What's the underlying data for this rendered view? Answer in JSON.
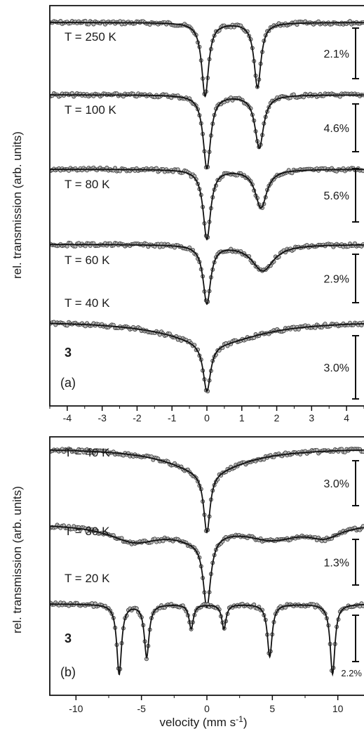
{
  "chart_data": [
    {
      "panel": "(a)",
      "type": "line",
      "sample_label": "3",
      "ylabel": "rel. transmission (arb. units)",
      "xlabel": "",
      "xlim": [
        -4.5,
        4.5
      ],
      "xticks": [
        -4,
        -3,
        -2,
        -1,
        0,
        1,
        2,
        3,
        4
      ],
      "series": [
        {
          "name": "T = 250 K",
          "scale": "2.1%",
          "lines": [
            {
              "center": -0.05,
              "gamma": 0.12,
              "depth": 1.0
            },
            {
              "center": 1.45,
              "gamma": 0.12,
              "depth": 0.88
            }
          ]
        },
        {
          "name": "T = 100 K",
          "scale": "4.6%",
          "lines": [
            {
              "center": 0.0,
              "gamma": 0.13,
              "depth": 1.0
            },
            {
              "center": 1.5,
              "gamma": 0.15,
              "depth": 0.72
            }
          ]
        },
        {
          "name": "T = 80 K",
          "scale": "5.6%",
          "lines": [
            {
              "center": 0.0,
              "gamma": 0.13,
              "depth": 1.0
            },
            {
              "center": 1.55,
              "gamma": 0.2,
              "depth": 0.55
            }
          ]
        },
        {
          "name": "T = 60 K",
          "scale": "2.9%",
          "lines": [
            {
              "center": 0.0,
              "gamma": 0.13,
              "depth": 1.0
            },
            {
              "center": 1.6,
              "gamma": 0.38,
              "depth": 0.45
            }
          ]
        },
        {
          "name": "T = 40 K",
          "scale": "3.0%",
          "lines": [
            {
              "center": 0.0,
              "gamma": 0.13,
              "depth": 0.75
            },
            {
              "center": 0.2,
              "gamma": 1.6,
              "depth": 0.35
            }
          ]
        }
      ]
    },
    {
      "panel": "(b)",
      "type": "line",
      "sample_label": "3",
      "ylabel": "rel. transmission (arb. units)",
      "xlabel": "velocity (mm s",
      "xlabel_sup": "-1",
      "xlabel_end": ")",
      "xlim": [
        -12,
        12
      ],
      "xticks": [
        -10,
        -5,
        0,
        5,
        10
      ],
      "series": [
        {
          "name": "T = 40 K",
          "scale": "3.0%",
          "lines": [
            {
              "center": 0.0,
              "gamma": 0.3,
              "depth": 0.75
            },
            {
              "center": 0.0,
              "gamma": 3.5,
              "depth": 0.3
            }
          ]
        },
        {
          "name": "T = 30 K",
          "scale": "1.3%",
          "lines": [
            {
              "center": 0.0,
              "gamma": 0.35,
              "depth": 0.75
            },
            {
              "center": -5.5,
              "gamma": 2.5,
              "depth": 0.18
            },
            {
              "center": 5.0,
              "gamma": 2.5,
              "depth": 0.15
            },
            {
              "center": 9.0,
              "gamma": 1.5,
              "depth": 0.12
            },
            {
              "center": -1.0,
              "gamma": 2.0,
              "depth": 0.12
            }
          ]
        },
        {
          "name": "T = 20 K",
          "scale": "2.2%",
          "lines": [
            {
              "center": -6.7,
              "gamma": 0.22,
              "depth": 1.0
            },
            {
              "center": -4.6,
              "gamma": 0.22,
              "depth": 0.75
            },
            {
              "center": -1.2,
              "gamma": 0.2,
              "depth": 0.35
            },
            {
              "center": 1.3,
              "gamma": 0.2,
              "depth": 0.35
            },
            {
              "center": 4.8,
              "gamma": 0.22,
              "depth": 0.75
            },
            {
              "center": 9.6,
              "gamma": 0.22,
              "depth": 1.0
            }
          ]
        }
      ]
    }
  ]
}
